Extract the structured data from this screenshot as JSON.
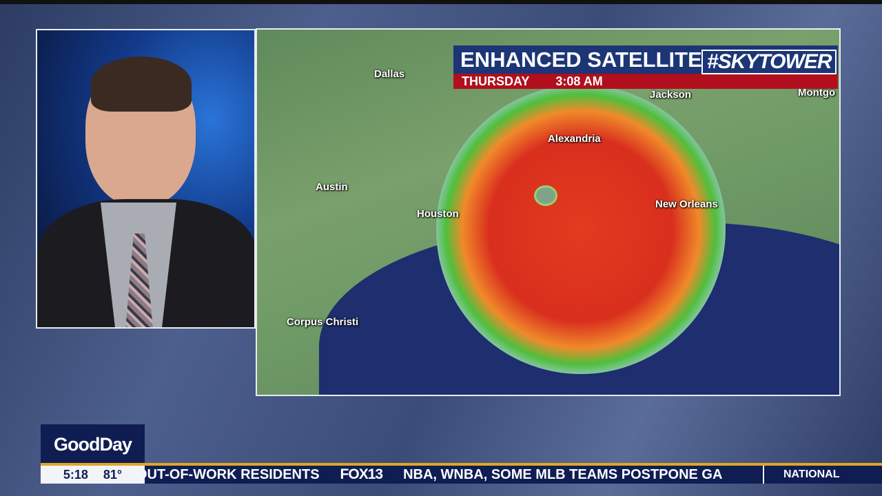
{
  "graphic": {
    "title": "ENHANCED SATELLITE",
    "brand": "#SKYTOWER",
    "day": "THURSDAY",
    "time": "3:08 AM"
  },
  "map": {
    "cities": [
      "Dallas",
      "Austin",
      "Houston",
      "Corpus Christi",
      "Alexandria",
      "Jackson",
      "New Orleans",
      "Montgo"
    ]
  },
  "show": {
    "logo": "GoodDay",
    "clock": "5:18",
    "temp": "81°"
  },
  "ticker": {
    "items": [
      "OUT-OF-WORK RESIDENTS",
      "FOX13",
      "NBA, WNBA, SOME MLB TEAMS POSTPONE GA"
    ],
    "section": "NATIONAL"
  },
  "colors": {
    "navy": "#0f1d52",
    "gold": "#e1a623",
    "red": "#b10f1d",
    "title_blue": "#1c3576"
  }
}
